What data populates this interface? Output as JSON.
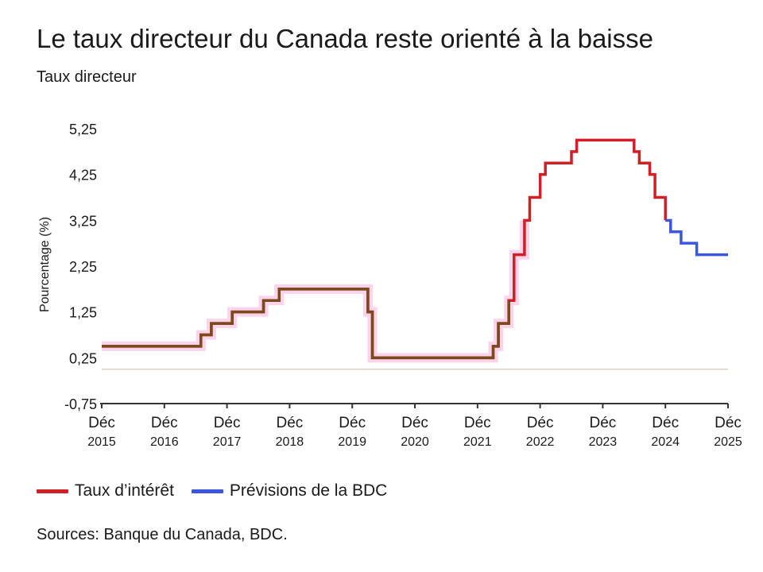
{
  "header": {
    "title": "Le taux directeur du Canada reste orienté à la baisse",
    "subtitle": "Taux directeur"
  },
  "legend": {
    "items": [
      {
        "label": "Taux d’intérêt",
        "color": "#d21f26"
      },
      {
        "label": "Prévisions de la BDC",
        "color": "#3b57e0"
      }
    ]
  },
  "footer": {
    "source": "Sources: Banque du Canada, BDC."
  },
  "colors": {
    "actual": "#d21f26",
    "overlap": "#7a4a1c",
    "forecast": "#3b57e0",
    "highlight": "#fbd3ea",
    "zero_line": "#d9d2c4",
    "axis": "#333333"
  },
  "chart_data": {
    "type": "line",
    "step": true,
    "ylabel": "Pourcentage (%)",
    "ylim": [
      -0.75,
      5.25
    ],
    "yticks": [
      "5,25",
      "4,25",
      "3,25",
      "2,25",
      "1,25",
      "0,25",
      "-0,75"
    ],
    "yticks_values": [
      5.25,
      4.25,
      3.25,
      2.25,
      1.25,
      0.25,
      -0.75
    ],
    "xlim": [
      "2015-12",
      "2025-12"
    ],
    "xticks": [
      {
        "month": "Déc",
        "year": "2015",
        "date": "2015-12"
      },
      {
        "month": "Déc",
        "year": "2016",
        "date": "2016-12"
      },
      {
        "month": "Déc",
        "year": "2017",
        "date": "2017-12"
      },
      {
        "month": "Déc",
        "year": "2018",
        "date": "2018-12"
      },
      {
        "month": "Déc",
        "year": "2019",
        "date": "2019-12"
      },
      {
        "month": "Déc",
        "year": "2020",
        "date": "2020-12"
      },
      {
        "month": "Déc",
        "year": "2021",
        "date": "2021-12"
      },
      {
        "month": "Déc",
        "year": "2022",
        "date": "2022-12"
      },
      {
        "month": "Déc",
        "year": "2023",
        "date": "2023-12"
      },
      {
        "month": "Déc",
        "year": "2024",
        "date": "2024-12"
      },
      {
        "month": "Déc",
        "year": "2025",
        "date": "2025-12"
      }
    ],
    "grid": false,
    "legend_position": "bottom-left",
    "series": [
      {
        "name": "Taux d’intérêt",
        "style": "actual",
        "points": [
          [
            "2015-12",
            0.5
          ],
          [
            "2017-07",
            0.75
          ],
          [
            "2017-09",
            1.0
          ],
          [
            "2018-01",
            1.25
          ],
          [
            "2018-07",
            1.5
          ],
          [
            "2018-10",
            1.75
          ],
          [
            "2020-03",
            1.25
          ],
          [
            "2020-03-27",
            0.25
          ],
          [
            "2022-03",
            0.5
          ],
          [
            "2022-04",
            1.0
          ],
          [
            "2022-06",
            1.5
          ],
          [
            "2022-07",
            2.5
          ],
          [
            "2022-09",
            3.25
          ],
          [
            "2022-10",
            3.75
          ],
          [
            "2022-12",
            4.25
          ],
          [
            "2023-01",
            4.5
          ],
          [
            "2023-06",
            4.75
          ],
          [
            "2023-07",
            5.0
          ],
          [
            "2024-06",
            4.75
          ],
          [
            "2024-07",
            4.5
          ],
          [
            "2024-09",
            4.25
          ],
          [
            "2024-10",
            3.75
          ],
          [
            "2024-12",
            3.25
          ]
        ]
      },
      {
        "name": "Prévisions de la BDC",
        "style": "forecast",
        "points": [
          [
            "2024-12",
            3.25
          ],
          [
            "2025-01",
            3.0
          ],
          [
            "2025-03",
            2.75
          ],
          [
            "2025-06",
            2.5
          ],
          [
            "2025-12",
            2.5
          ]
        ]
      }
    ]
  }
}
